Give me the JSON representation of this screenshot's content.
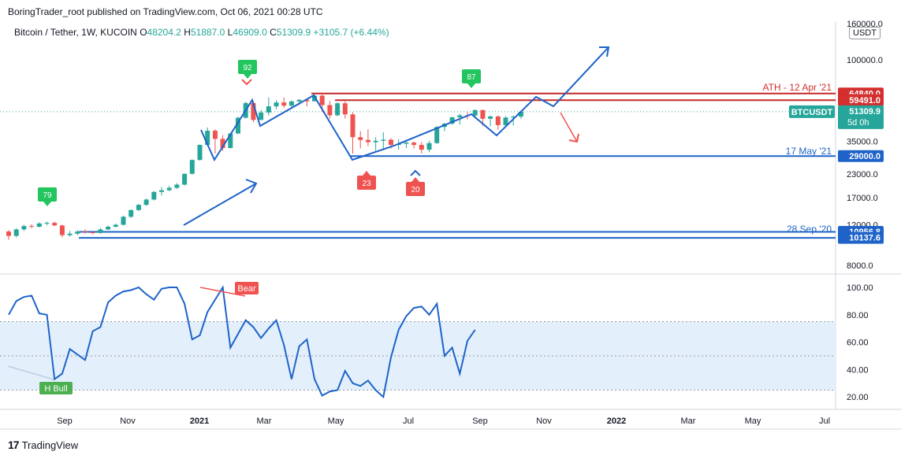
{
  "publish_line": "BoringTrader_root published on TradingView.com, Oct 06, 2021 00:28 UTC",
  "symbol_line": "Bitcoin / Tether, 1W, KUCOIN",
  "ohlc": {
    "o_label": "O",
    "o": "48204.2",
    "h_label": "H",
    "h": "51887.0",
    "l_label": "L",
    "l": "46909.0",
    "c_label": "C",
    "c": "51309.9",
    "change": "+3105.7 (+6.44%)"
  },
  "currency_button": "USDT",
  "footer_brand": "TradingView",
  "footer_logo": "17",
  "colors": {
    "up": "#26a69a",
    "down": "#ef5350",
    "blue": "#2962ff",
    "line_blue": "#1e63c8",
    "red_line": "#c62828",
    "accent_green": "#22c55e",
    "rsi_band": "#e3f0fc"
  },
  "price_axis": {
    "scale": "log",
    "ticks": [
      "100000.0",
      "35000.0",
      "23000.0",
      "17000.0",
      "12000.0"
    ],
    "clipped_top": "160000.0",
    "clipped_bottom": "8000.0"
  },
  "price_labels": [
    {
      "text": "64840.0",
      "price": 64840,
      "bg": "#d32f2f"
    },
    {
      "text": "59491.0",
      "price": 59491,
      "bg": "#d32f2f"
    },
    {
      "text": "51309.9",
      "price": 51309.9,
      "bg": "#26a69a",
      "sub": "5d 0h"
    },
    {
      "text": "29000.0",
      "price": 29000,
      "bg": "#1e63c8"
    },
    {
      "text": "10956.8",
      "price": 10956.8,
      "bg": "#1e63c8"
    },
    {
      "text": "10137.6",
      "price": 10137.6,
      "bg": "#1e63c8"
    }
  ],
  "symbol_tag": "BTCUSDT",
  "annotations": [
    {
      "text": "ATH - 12 Apr '21",
      "color": "#d32f2f"
    },
    {
      "text": "17 May '21",
      "color": "#1e63c8"
    },
    {
      "text": "28 Sep '20",
      "color": "#1e63c8"
    }
  ],
  "markers": [
    {
      "text": "79",
      "color": "#22c55e"
    },
    {
      "text": "92",
      "color": "#22c55e"
    },
    {
      "text": "87",
      "color": "#22c55e"
    },
    {
      "text": "23",
      "color": "#ef5350"
    },
    {
      "text": "20",
      "color": "#ef5350"
    }
  ],
  "x_axis": [
    "Sep",
    "Nov",
    "2021",
    "Mar",
    "May",
    "Jul",
    "Sep",
    "Nov",
    "2022",
    "Mar",
    "May",
    "Jul"
  ],
  "rsi": {
    "ticks": [
      "100.00",
      "80.00",
      "60.00",
      "40.00",
      "20.00"
    ],
    "band": [
      25,
      75
    ],
    "mid": 50,
    "bear_label": "Bear",
    "bull_label": "H Bull",
    "values": [
      80,
      90,
      93,
      94,
      81,
      80,
      33,
      37,
      55,
      51,
      47,
      68,
      71,
      89,
      94,
      97,
      98,
      100,
      95,
      91,
      99,
      100,
      100,
      88,
      62,
      65,
      82,
      91,
      100,
      56,
      66,
      76,
      71,
      63,
      70,
      76,
      58,
      33,
      57,
      62,
      33,
      21,
      24,
      25,
      39,
      30,
      28,
      32,
      25,
      20,
      49,
      69,
      79,
      85,
      86,
      80,
      88,
      50,
      56,
      37,
      61,
      69
    ]
  },
  "chart_data": {
    "type": "candlestick",
    "title": "Bitcoin / Tether, 1W, KUCOIN",
    "y_scale": "log",
    "ylim": [
      8000,
      160000
    ],
    "x_ticks": [
      "Sep",
      "Nov",
      "2021",
      "Mar",
      "May",
      "Jul",
      "Sep",
      "Nov",
      "2022",
      "Mar",
      "May",
      "Jul"
    ],
    "candles": [
      [
        11000,
        11200,
        9900,
        10400
      ],
      [
        10400,
        11500,
        10200,
        11300
      ],
      [
        11300,
        12000,
        11100,
        11800
      ],
      [
        11800,
        12100,
        11500,
        11700
      ],
      [
        11700,
        12400,
        11600,
        12200
      ],
      [
        12200,
        12500,
        11900,
        12300
      ],
      [
        12300,
        12500,
        11800,
        11900
      ],
      [
        11900,
        12000,
        10200,
        10500
      ],
      [
        10500,
        11100,
        10300,
        10700
      ],
      [
        10700,
        11200,
        10500,
        11000
      ],
      [
        11000,
        11300,
        10700,
        10900
      ],
      [
        10900,
        11100,
        10600,
        10800
      ],
      [
        10800,
        11500,
        10700,
        11300
      ],
      [
        11300,
        11900,
        11200,
        11700
      ],
      [
        11700,
        12200,
        11600,
        12000
      ],
      [
        12000,
        13500,
        11900,
        13300
      ],
      [
        13300,
        14600,
        13100,
        14500
      ],
      [
        14500,
        15700,
        14300,
        15500
      ],
      [
        15500,
        16800,
        15300,
        16600
      ],
      [
        16600,
        18500,
        16400,
        18300
      ],
      [
        18300,
        19500,
        17500,
        18700
      ],
      [
        18700,
        19800,
        18500,
        19300
      ],
      [
        19300,
        20500,
        19000,
        20100
      ],
      [
        20100,
        23200,
        19900,
        23100
      ],
      [
        23100,
        27800,
        22900,
        27600
      ],
      [
        27600,
        33700,
        27400,
        33500
      ],
      [
        33500,
        41900,
        33000,
        40200
      ],
      [
        40200,
        41000,
        30000,
        36200
      ],
      [
        36200,
        38000,
        31000,
        32200
      ],
      [
        32200,
        39000,
        32000,
        38800
      ],
      [
        38800,
        48000,
        38500,
        47500
      ],
      [
        47500,
        58300,
        47000,
        57400
      ],
      [
        57400,
        58000,
        44900,
        46200
      ],
      [
        46200,
        52500,
        46000,
        50800
      ],
      [
        50800,
        61600,
        49000,
        55000
      ],
      [
        55000,
        59500,
        53000,
        57800
      ],
      [
        57800,
        61700,
        54000,
        55500
      ],
      [
        55500,
        59200,
        53500,
        58600
      ],
      [
        58600,
        60300,
        56000,
        59800
      ],
      [
        59800,
        61000,
        55000,
        58700
      ],
      [
        58700,
        64800,
        58500,
        63100
      ],
      [
        63100,
        64000,
        51000,
        55900
      ],
      [
        55900,
        59000,
        47000,
        49000
      ],
      [
        49000,
        58000,
        48500,
        57200
      ],
      [
        57200,
        58700,
        47000,
        49600
      ],
      [
        49600,
        51000,
        30000,
        37000
      ],
      [
        37000,
        40000,
        32000,
        35700
      ],
      [
        35700,
        41000,
        33000,
        34700
      ],
      [
        34700,
        37000,
        31000,
        35300
      ],
      [
        35300,
        39400,
        31800,
        35800
      ],
      [
        35800,
        36500,
        32000,
        33500
      ],
      [
        33500,
        36000,
        31500,
        34000
      ],
      [
        34000,
        35200,
        32200,
        34500
      ],
      [
        34500,
        35000,
        32000,
        33500
      ],
      [
        33500,
        34800,
        30000,
        31500
      ],
      [
        31500,
        35400,
        30500,
        34300
      ],
      [
        34300,
        42500,
        34000,
        42200
      ],
      [
        42200,
        44500,
        40000,
        44000
      ],
      [
        44000,
        48000,
        43500,
        47800
      ],
      [
        47800,
        50000,
        43500,
        49000
      ],
      [
        49000,
        51000,
        46500,
        48900
      ],
      [
        48900,
        52900,
        47000,
        52400
      ],
      [
        52400,
        52800,
        42800,
        46900
      ],
      [
        46900,
        48800,
        42500,
        48300
      ],
      [
        48300,
        49000,
        40700,
        43200
      ],
      [
        43200,
        48500,
        42500,
        47600
      ],
      [
        47600,
        49000,
        43000,
        48200
      ],
      [
        48200,
        51900,
        46900,
        51300
      ]
    ]
  }
}
